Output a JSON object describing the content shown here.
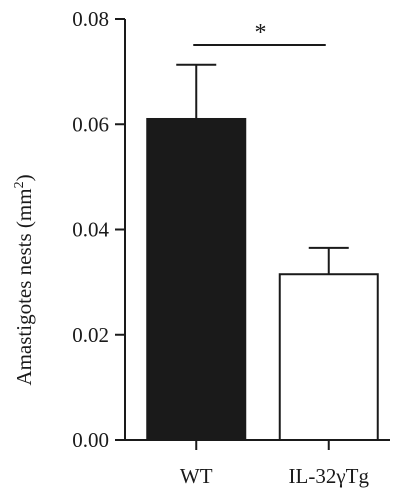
{
  "chart_data": {
    "type": "bar",
    "categories": [
      "WT",
      "IL-32γTg"
    ],
    "values": [
      0.061,
      0.0315
    ],
    "errors": [
      0.0103,
      0.005
    ],
    "bar_fills": [
      "#1a1a1a",
      "#ffffff"
    ],
    "ylabel_main": "Amastigotes nests (mm",
    "ylabel_sup": "2",
    "ylabel_close": ")",
    "ylim": [
      0,
      0.08
    ],
    "yticks": [
      "0.00",
      "0.02",
      "0.04",
      "0.06",
      "0.08"
    ],
    "significance": {
      "label": "*",
      "between": [
        "WT",
        "IL-32γTg"
      ]
    },
    "grid": false
  }
}
